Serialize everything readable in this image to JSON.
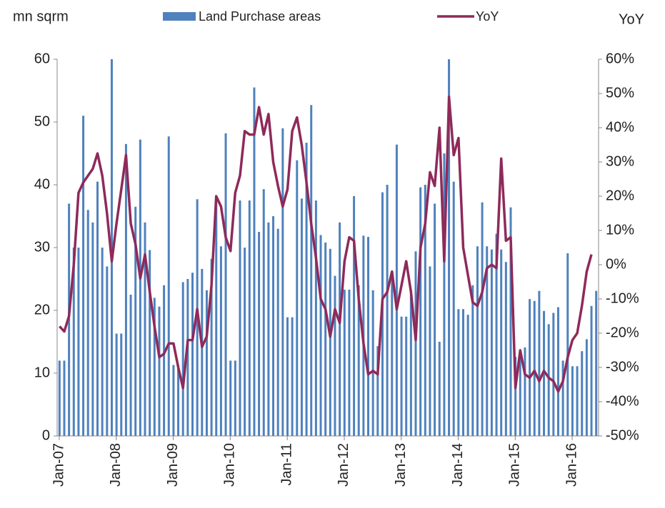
{
  "chart_data": {
    "type": "bar_line",
    "y_label": "mn sqrm",
    "y2_label": "YoY",
    "categories": [
      "Jan-07",
      null,
      null,
      null,
      null,
      null,
      null,
      null,
      null,
      null,
      null,
      null,
      "Jan-08",
      null,
      null,
      null,
      null,
      null,
      null,
      null,
      null,
      null,
      null,
      null,
      "Jan-09",
      null,
      null,
      null,
      null,
      null,
      null,
      null,
      null,
      null,
      null,
      null,
      "Jan-10",
      null,
      null,
      null,
      null,
      null,
      null,
      null,
      null,
      null,
      null,
      null,
      "Jan-11",
      null,
      null,
      null,
      null,
      null,
      null,
      null,
      null,
      null,
      null,
      null,
      "Jan-12",
      null,
      null,
      null,
      null,
      null,
      null,
      null,
      null,
      null,
      null,
      null,
      "Jan-13",
      null,
      null,
      null,
      null,
      null,
      null,
      null,
      null,
      null,
      null,
      null,
      "Jan-14",
      null,
      null,
      null,
      null,
      null,
      null,
      null,
      null,
      null,
      null,
      null,
      "Jan-15",
      null,
      null,
      null,
      null,
      null,
      null,
      null,
      null,
      null,
      null,
      null,
      "Jan-16",
      null,
      null,
      null,
      null,
      null
    ],
    "series": [
      {
        "name": "Land Purchase areas",
        "type": "bar",
        "color": "#4f81bd",
        "values": [
          12,
          12,
          37,
          30,
          30,
          51,
          36,
          34,
          40.5,
          30,
          27,
          60,
          16.3,
          16.3,
          46.5,
          22.5,
          36.5,
          47.2,
          34,
          29.6,
          22,
          20.6,
          24,
          47.7,
          11.3,
          11.3,
          24.5,
          25,
          26,
          37.7,
          26.6,
          23.2,
          28.2,
          37.7,
          30.2,
          48.2,
          12,
          12,
          37.5,
          30,
          37.5,
          55.5,
          32.5,
          39.3,
          34,
          35,
          33,
          49,
          18.9,
          18.9,
          43.9,
          37.8,
          46.7,
          52.7,
          37.5,
          32,
          30.8,
          29.8,
          25.5,
          34,
          23.3,
          23.3,
          38.2,
          24,
          31.9,
          31.7,
          23.2,
          14.3,
          38.8,
          40,
          25.8,
          46.4,
          19,
          19,
          23.2,
          29.4,
          39.6,
          40,
          27,
          37,
          15,
          45,
          60,
          40.5,
          20.2,
          20.2,
          19.3,
          24,
          30.2,
          37.2,
          30.2,
          29.7,
          32.2,
          29.7,
          27.7,
          36.4,
          12.6,
          12.6,
          14.1,
          21.8,
          21.5,
          23.1,
          19.9,
          17.8,
          19.6,
          20.5,
          12,
          29.1,
          11.1,
          11.1,
          13.5,
          15.4,
          20.7,
          23.1
        ]
      },
      {
        "name": "YoY",
        "type": "line",
        "axis": "y2",
        "color": "#8e2a5a",
        "values": [
          -18,
          -19.5,
          -15,
          0,
          21,
          24,
          26,
          28,
          32.5,
          26,
          15,
          1,
          12,
          22,
          32,
          12,
          6,
          -4,
          3,
          -8,
          -18,
          -27,
          -26,
          -23,
          -23,
          -30,
          -36,
          -22,
          -22,
          -13,
          -24,
          -21,
          -6,
          20,
          17,
          8,
          4,
          21,
          26,
          39,
          38,
          38,
          46,
          38,
          44,
          30,
          23,
          17,
          22,
          39,
          43,
          35,
          24,
          12,
          2,
          -10,
          -13,
          -21,
          -13,
          -17,
          1,
          8,
          7,
          -10,
          -23,
          -32,
          -31,
          -32,
          -10,
          -8,
          -2,
          -13,
          -6,
          1,
          -8,
          -22,
          5,
          12,
          27,
          23,
          40,
          1,
          49,
          32,
          37,
          5,
          -3,
          -11,
          -12,
          -8,
          -1,
          0,
          -1,
          31,
          7,
          8,
          -36,
          -25,
          -32,
          -33,
          -31,
          -34,
          -31,
          -33,
          -34,
          -37,
          -34,
          -27,
          -22,
          -20,
          -12,
          -2,
          3,
          null
        ]
      }
    ],
    "ylim": [
      0,
      60
    ],
    "yticks": [
      0,
      10,
      20,
      30,
      40,
      50,
      60
    ],
    "y2lim": [
      -50,
      60
    ],
    "y2ticks": [
      {
        "value": -50,
        "label": "-50%"
      },
      {
        "value": -40,
        "label": "-40%"
      },
      {
        "value": -30,
        "label": "-30%"
      },
      {
        "value": -20,
        "label": "-20%"
      },
      {
        "value": -10,
        "label": "-10%"
      },
      {
        "value": 0,
        "label": "0%"
      },
      {
        "value": 10,
        "label": "10%"
      },
      {
        "value": 20,
        "label": "20%"
      },
      {
        "value": 30,
        "label": "30%"
      },
      {
        "value": 40,
        "label": "40%"
      },
      {
        "value": 50,
        "label": "50%"
      },
      {
        "value": 60,
        "label": "60%"
      }
    ],
    "grid": false
  }
}
